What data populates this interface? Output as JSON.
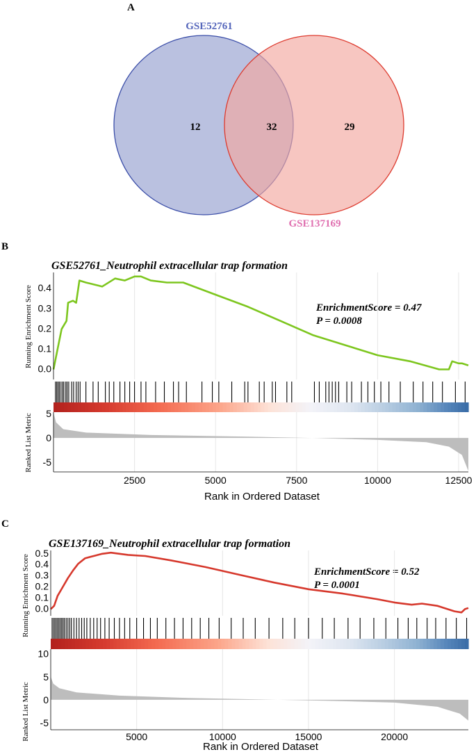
{
  "panels": {
    "A": {
      "label": "A",
      "type": "venn",
      "sets": [
        {
          "name": "GSE52761",
          "only": 12,
          "color": "#3a4da8",
          "fill": "#aeb6da",
          "label_color": "#5566bb"
        },
        {
          "name": "GSE137169",
          "only": 29,
          "color": "#dd3a2e",
          "fill": "#f2a8a0",
          "label_color": "#e070b0"
        }
      ],
      "intersection": 32
    },
    "B": {
      "label": "B",
      "title": "GSE52761_Neutrophil extracellular trap formation",
      "annotation": {
        "es": "EnrichmentScore = 0.47",
        "p": "P = 0.0008"
      },
      "line_color": "#7dc61e",
      "ylabel_top": "Running Enrichment Score",
      "ylabel_bottom": "Ranked List Metric",
      "xlabel": "Rank in Ordered Dataset"
    },
    "C": {
      "label": "C",
      "title": "GSE137169_Neutrophil extracellular trap formation",
      "annotation": {
        "es": "EnrichmentScore = 0.52",
        "p": "P = 0.0001"
      },
      "line_color": "#d6382c",
      "ylabel_top": "Running Enrichment Score",
      "ylabel_bottom": "Ranked List Metric",
      "xlabel": "Rank in Ordered Dataset"
    }
  },
  "chart_data": [
    {
      "type": "line",
      "panel": "B",
      "title": "GSE52761_Neutrophil extracellular trap formation",
      "xlabel": "Rank in Ordered Dataset",
      "ylabel": "Running Enrichment Score",
      "xlim": [
        0,
        12800
      ],
      "ylim": [
        -0.05,
        0.48
      ],
      "xticks": [
        2500,
        5000,
        7500,
        10000,
        12500
      ],
      "xtick_labels": [
        "2500",
        "5000",
        "7500",
        "10000",
        "12500"
      ],
      "yticks": [
        0.0,
        0.1,
        0.2,
        0.3,
        0.4
      ],
      "ytick_labels": [
        "0.0",
        "0.1",
        "0.2",
        "0.3",
        "0.4"
      ],
      "running_es": [
        [
          0,
          0.0
        ],
        [
          150,
          0.12
        ],
        [
          250,
          0.2
        ],
        [
          400,
          0.24
        ],
        [
          450,
          0.33
        ],
        [
          600,
          0.34
        ],
        [
          700,
          0.33
        ],
        [
          800,
          0.44
        ],
        [
          1000,
          0.43
        ],
        [
          1500,
          0.41
        ],
        [
          1900,
          0.45
        ],
        [
          2200,
          0.44
        ],
        [
          2500,
          0.46
        ],
        [
          2700,
          0.46
        ],
        [
          3000,
          0.44
        ],
        [
          3500,
          0.43
        ],
        [
          4000,
          0.43
        ],
        [
          5000,
          0.37
        ],
        [
          6000,
          0.31
        ],
        [
          7000,
          0.24
        ],
        [
          8000,
          0.17
        ],
        [
          9000,
          0.12
        ],
        [
          10000,
          0.07
        ],
        [
          11000,
          0.04
        ],
        [
          11900,
          0.0
        ],
        [
          12200,
          0.0
        ],
        [
          12300,
          0.04
        ],
        [
          12500,
          0.03
        ],
        [
          12600,
          0.03
        ],
        [
          12800,
          0.02
        ]
      ],
      "hits": [
        60,
        100,
        140,
        180,
        230,
        280,
        320,
        380,
        420,
        470,
        560,
        620,
        700,
        760,
        820,
        1000,
        1220,
        1380,
        1600,
        1720,
        1860,
        2050,
        2200,
        2350,
        2500,
        2700,
        2850,
        3150,
        3420,
        3700,
        3860,
        4100,
        4580,
        4900,
        5100,
        5500,
        5900,
        6000,
        6350,
        6500,
        6750,
        6850,
        7200,
        7350,
        8050,
        8200,
        8400,
        8500,
        8600,
        8700,
        8800,
        9050,
        9200,
        9500,
        9700,
        9900,
        10100,
        10350,
        10700,
        11100,
        11400,
        11700,
        12000,
        12400,
        12700
      ],
      "ranked_metric": {
        "ylim": [
          -7,
          5.3
        ],
        "yticks": [
          5,
          0,
          -5
        ],
        "ytick_labels": [
          "5",
          "0",
          "-5"
        ],
        "curve": [
          [
            0,
            5.2
          ],
          [
            80,
            3.2
          ],
          [
            300,
            1.8
          ],
          [
            1000,
            1.1
          ],
          [
            3000,
            0.6
          ],
          [
            6000,
            0.25
          ],
          [
            8000,
            0.0
          ],
          [
            10000,
            -0.4
          ],
          [
            11500,
            -0.9
          ],
          [
            12200,
            -1.8
          ],
          [
            12600,
            -3.5
          ],
          [
            12800,
            -6.8
          ]
        ]
      }
    },
    {
      "type": "line",
      "panel": "C",
      "title": "GSE137169_Neutrophil extracellular trap formation",
      "xlabel": "Rank in Ordered Dataset",
      "ylabel": "Running Enrichment Score",
      "xlim": [
        0,
        24300
      ],
      "ylim": [
        -0.06,
        0.53
      ],
      "xticks": [
        5000,
        10000,
        15000,
        20000
      ],
      "xtick_labels": [
        "5000",
        "10000",
        "15000",
        "20000"
      ],
      "yticks": [
        0.0,
        0.1,
        0.2,
        0.3,
        0.4,
        0.5
      ],
      "ytick_labels": [
        "0.0",
        "0.1",
        "0.2",
        "0.3",
        "0.4",
        "0.5"
      ],
      "running_es": [
        [
          0,
          0.0
        ],
        [
          200,
          0.03
        ],
        [
          400,
          0.12
        ],
        [
          700,
          0.2
        ],
        [
          1000,
          0.28
        ],
        [
          1300,
          0.35
        ],
        [
          1600,
          0.41
        ],
        [
          2000,
          0.46
        ],
        [
          2500,
          0.48
        ],
        [
          3000,
          0.5
        ],
        [
          3500,
          0.51
        ],
        [
          4000,
          0.5
        ],
        [
          4500,
          0.49
        ],
        [
          5500,
          0.48
        ],
        [
          7000,
          0.44
        ],
        [
          9000,
          0.38
        ],
        [
          11000,
          0.31
        ],
        [
          13000,
          0.24
        ],
        [
          15000,
          0.18
        ],
        [
          17000,
          0.14
        ],
        [
          19000,
          0.09
        ],
        [
          20000,
          0.06
        ],
        [
          21000,
          0.04
        ],
        [
          21600,
          0.05
        ],
        [
          22500,
          0.03
        ],
        [
          23500,
          -0.02
        ],
        [
          23900,
          -0.03
        ],
        [
          24100,
          0.0
        ],
        [
          24300,
          0.01
        ]
      ],
      "hits": [
        80,
        160,
        240,
        320,
        400,
        480,
        560,
        640,
        720,
        800,
        900,
        1000,
        1100,
        1200,
        1350,
        1500,
        1650,
        1800,
        1950,
        2100,
        2300,
        2500,
        2700,
        2900,
        3150,
        3400,
        3700,
        4000,
        4300,
        4600,
        5000,
        5400,
        5800,
        6200,
        6700,
        7200,
        7700,
        8200,
        8700,
        9200,
        9800,
        10500,
        11200,
        11900,
        12700,
        13500,
        14200,
        15000,
        15800,
        16500,
        17300,
        18000,
        18800,
        19500,
        20200,
        20800,
        21300,
        21900,
        22400,
        23000,
        23600,
        24200
      ],
      "ranked_metric": {
        "ylim": [
          -6.5,
          11
        ],
        "yticks": [
          10,
          5,
          0,
          -5
        ],
        "ytick_labels": [
          "10",
          "5",
          "0",
          "-5"
        ],
        "curve": [
          [
            0,
            5.0
          ],
          [
            150,
            3.5
          ],
          [
            500,
            2.5
          ],
          [
            1500,
            1.6
          ],
          [
            4000,
            0.9
          ],
          [
            8000,
            0.4
          ],
          [
            12000,
            0.1
          ],
          [
            16000,
            -0.2
          ],
          [
            20000,
            -0.6
          ],
          [
            22500,
            -1.5
          ],
          [
            23800,
            -3.0
          ],
          [
            24300,
            -4.5
          ]
        ]
      }
    }
  ]
}
